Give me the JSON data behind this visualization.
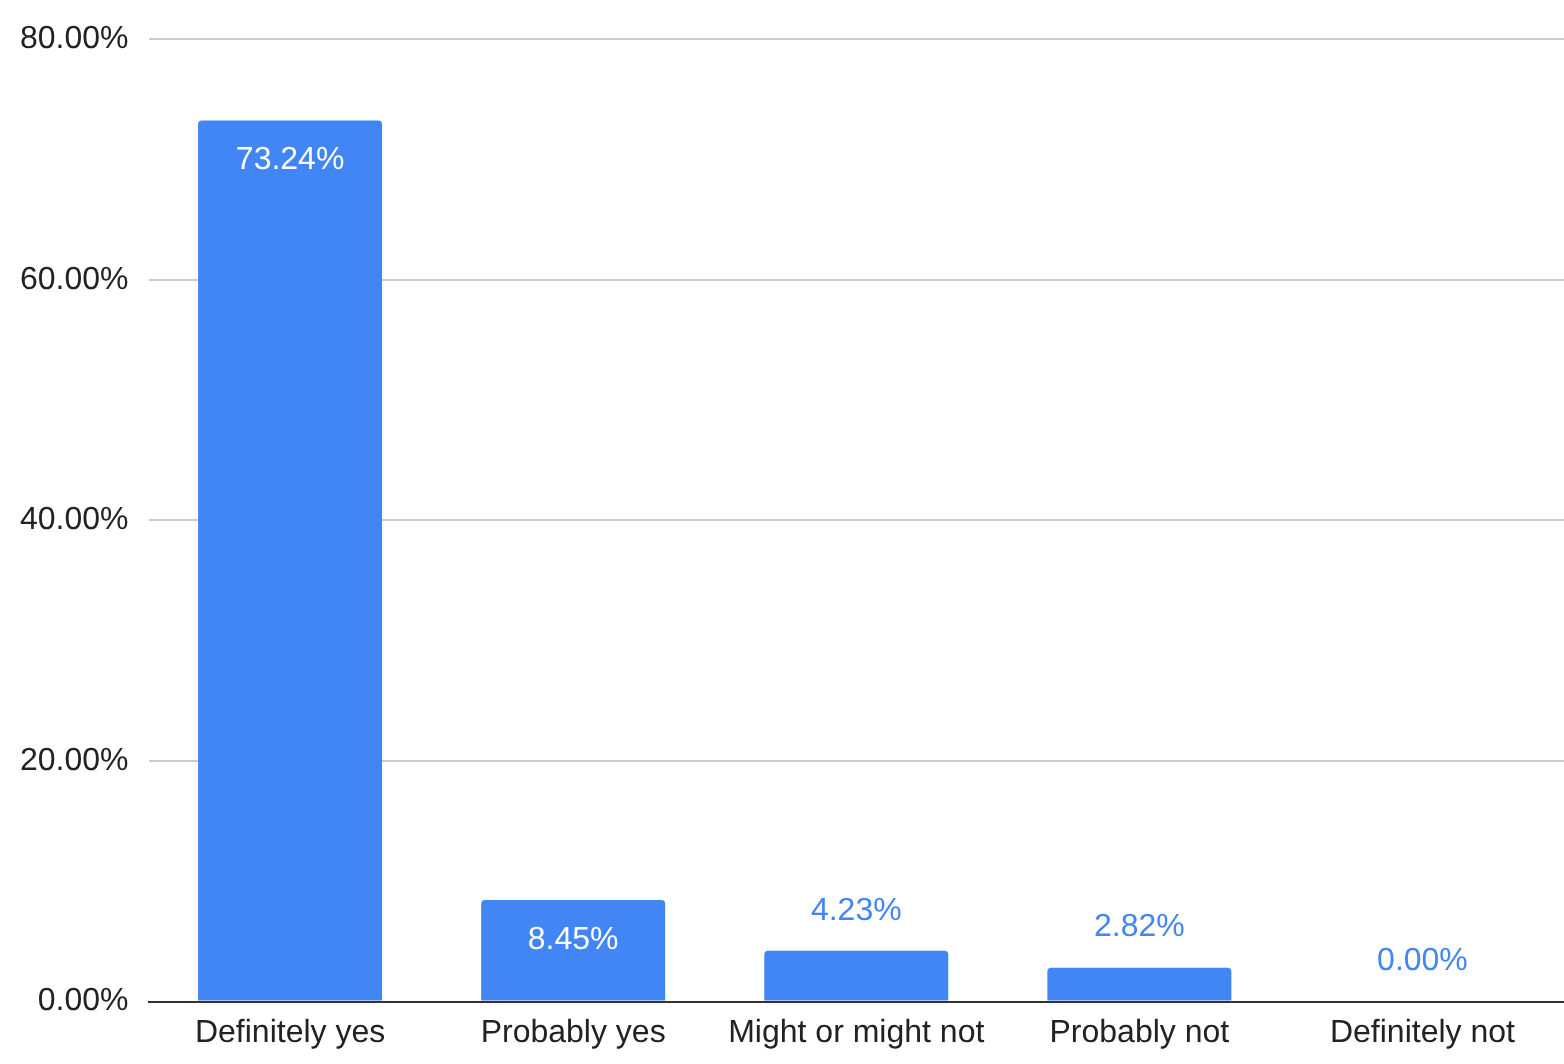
{
  "chart_data": {
    "type": "bar",
    "categories": [
      "Definitely yes",
      "Probably yes",
      "Might or might not",
      "Probably not",
      "Definitely not"
    ],
    "values": [
      73.24,
      8.45,
      4.23,
      2.82,
      0.0
    ],
    "value_labels": [
      "73.24%",
      "8.45%",
      "4.23%",
      "2.82%",
      "0.00%"
    ],
    "color": "#4285f4",
    "ylim": [
      0,
      80
    ],
    "yticks": [
      {
        "value": 0,
        "label": "0.00%"
      },
      {
        "value": 20,
        "label": "20.00%"
      },
      {
        "value": 40,
        "label": "40.00%"
      },
      {
        "value": 60,
        "label": "60.00%"
      },
      {
        "value": 80,
        "label": "80.00%"
      }
    ],
    "grid": "y"
  }
}
